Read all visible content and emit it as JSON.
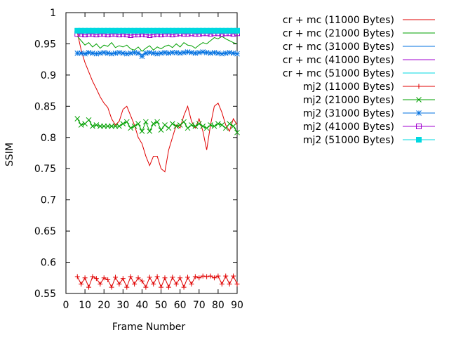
{
  "chart_data": {
    "type": "line",
    "xlabel": "Frame Number",
    "ylabel": "SSIM",
    "xlim": [
      0,
      90
    ],
    "ylim": [
      0.55,
      1
    ],
    "xticks": [
      0,
      10,
      20,
      30,
      40,
      50,
      60,
      70,
      80,
      90
    ],
    "yticks": [
      0.55,
      0.6,
      0.65,
      0.7,
      0.75,
      0.8,
      0.85,
      0.9,
      0.95,
      1
    ],
    "grid": false,
    "legend_position": "outside-right",
    "x": [
      6,
      8,
      10,
      12,
      14,
      16,
      18,
      20,
      22,
      24,
      26,
      28,
      30,
      32,
      34,
      36,
      38,
      40,
      42,
      44,
      46,
      48,
      50,
      52,
      54,
      56,
      58,
      60,
      62,
      64,
      66,
      68,
      70,
      72,
      74,
      76,
      78,
      80,
      82,
      84,
      86,
      88,
      90
    ],
    "series": [
      {
        "name": "cr + mc (11000 Bytes)",
        "color": "#e00000",
        "marker": "none",
        "values": [
          0.968,
          0.94,
          0.92,
          0.905,
          0.89,
          0.878,
          0.865,
          0.855,
          0.848,
          0.83,
          0.82,
          0.826,
          0.845,
          0.85,
          0.835,
          0.82,
          0.8,
          0.79,
          0.77,
          0.755,
          0.77,
          0.77,
          0.75,
          0.745,
          0.78,
          0.8,
          0.82,
          0.815,
          0.835,
          0.85,
          0.826,
          0.815,
          0.83,
          0.81,
          0.78,
          0.82,
          0.85,
          0.855,
          0.84,
          0.82,
          0.81,
          0.83,
          0.82
        ]
      },
      {
        "name": "cr + mc (21000 Bytes)",
        "color": "#00a000",
        "marker": "none",
        "values": [
          0.962,
          0.955,
          0.948,
          0.952,
          0.945,
          0.95,
          0.943,
          0.948,
          0.946,
          0.952,
          0.944,
          0.947,
          0.945,
          0.948,
          0.942,
          0.94,
          0.945,
          0.938,
          0.943,
          0.947,
          0.94,
          0.945,
          0.942,
          0.946,
          0.948,
          0.944,
          0.95,
          0.945,
          0.952,
          0.948,
          0.947,
          0.943,
          0.948,
          0.952,
          0.95,
          0.955,
          0.96,
          0.958,
          0.962,
          0.958,
          0.955,
          0.952,
          0.95
        ]
      },
      {
        "name": "cr + mc (31000 Bytes)",
        "color": "#0070e0",
        "marker": "none",
        "values": [
          0.935,
          0.935,
          0.934,
          0.936,
          0.935,
          0.934,
          0.935,
          0.936,
          0.935,
          0.934,
          0.935,
          0.936,
          0.935,
          0.934,
          0.935,
          0.936,
          0.935,
          0.933,
          0.935,
          0.936,
          0.935,
          0.934,
          0.935,
          0.936,
          0.935,
          0.936,
          0.936,
          0.935,
          0.936,
          0.937,
          0.936,
          0.935,
          0.936,
          0.937,
          0.936,
          0.935,
          0.936,
          0.935,
          0.934,
          0.935,
          0.936,
          0.935,
          0.934
        ]
      },
      {
        "name": "cr + mc (41000 Bytes)",
        "color": "#a000d0",
        "marker": "none",
        "values": [
          0.966,
          0.966,
          0.965,
          0.966,
          0.966,
          0.965,
          0.966,
          0.966,
          0.965,
          0.966,
          0.966,
          0.965,
          0.966,
          0.965,
          0.964,
          0.965,
          0.965,
          0.966,
          0.965,
          0.964,
          0.965,
          0.966,
          0.965,
          0.966,
          0.966,
          0.965,
          0.966,
          0.967,
          0.966,
          0.966,
          0.967,
          0.966,
          0.966,
          0.967,
          0.967,
          0.966,
          0.967,
          0.967,
          0.966,
          0.967,
          0.967,
          0.966,
          0.967
        ]
      },
      {
        "name": "cr + mc (51000 Bytes)",
        "color": "#00d8e0",
        "marker": "none",
        "values": [
          0.971,
          0.971,
          0.971,
          0.971,
          0.971,
          0.971,
          0.971,
          0.971,
          0.971,
          0.971,
          0.971,
          0.971,
          0.971,
          0.971,
          0.971,
          0.971,
          0.971,
          0.971,
          0.971,
          0.971,
          0.971,
          0.971,
          0.971,
          0.971,
          0.971,
          0.971,
          0.971,
          0.971,
          0.971,
          0.971,
          0.971,
          0.971,
          0.971,
          0.971,
          0.971,
          0.971,
          0.971,
          0.971,
          0.971,
          0.971,
          0.971,
          0.971,
          0.971
        ]
      },
      {
        "name": "mj2 (11000 Bytes)",
        "color": "#e00000",
        "marker": "plus",
        "values": [
          0.577,
          0.565,
          0.575,
          0.56,
          0.577,
          0.574,
          0.565,
          0.575,
          0.572,
          0.56,
          0.576,
          0.565,
          0.574,
          0.56,
          0.577,
          0.565,
          0.575,
          0.57,
          0.56,
          0.576,
          0.565,
          0.577,
          0.56,
          0.575,
          0.56,
          0.576,
          0.565,
          0.575,
          0.56,
          0.576,
          0.565,
          0.577,
          0.575,
          0.578,
          0.577,
          0.578,
          0.575,
          0.578,
          0.565,
          0.578,
          0.565,
          0.578,
          0.565
        ]
      },
      {
        "name": "mj2 (21000 Bytes)",
        "color": "#00a000",
        "marker": "x",
        "values": [
          0.83,
          0.82,
          0.822,
          0.828,
          0.818,
          0.82,
          0.818,
          0.818,
          0.818,
          0.818,
          0.818,
          0.818,
          0.822,
          0.825,
          0.815,
          0.818,
          0.822,
          0.81,
          0.825,
          0.81,
          0.822,
          0.825,
          0.812,
          0.82,
          0.815,
          0.822,
          0.818,
          0.82,
          0.825,
          0.815,
          0.82,
          0.818,
          0.822,
          0.818,
          0.815,
          0.82,
          0.818,
          0.822,
          0.82,
          0.815,
          0.822,
          0.818,
          0.808
        ]
      },
      {
        "name": "mj2 (31000 Bytes)",
        "color": "#0070e0",
        "marker": "star",
        "values": [
          0.935,
          0.935,
          0.934,
          0.936,
          0.935,
          0.934,
          0.935,
          0.936,
          0.935,
          0.934,
          0.935,
          0.936,
          0.935,
          0.934,
          0.935,
          0.936,
          0.935,
          0.93,
          0.935,
          0.936,
          0.935,
          0.934,
          0.935,
          0.936,
          0.935,
          0.936,
          0.936,
          0.935,
          0.936,
          0.937,
          0.936,
          0.935,
          0.936,
          0.937,
          0.936,
          0.935,
          0.936,
          0.935,
          0.934,
          0.935,
          0.936,
          0.935,
          0.934
        ]
      },
      {
        "name": "mj2 (41000 Bytes)",
        "color": "#a000d0",
        "marker": "square-open",
        "values": [
          0.966,
          0.966,
          0.965,
          0.966,
          0.966,
          0.965,
          0.966,
          0.966,
          0.965,
          0.966,
          0.966,
          0.965,
          0.966,
          0.965,
          0.964,
          0.965,
          0.965,
          0.966,
          0.965,
          0.964,
          0.965,
          0.966,
          0.965,
          0.966,
          0.966,
          0.965,
          0.966,
          0.967,
          0.966,
          0.966,
          0.967,
          0.966,
          0.966,
          0.967,
          0.967,
          0.966,
          0.967,
          0.967,
          0.966,
          0.967,
          0.967,
          0.966,
          0.967
        ]
      },
      {
        "name": "mj2 (51000 Bytes)",
        "color": "#00d8e0",
        "marker": "square-filled",
        "values": [
          0.971,
          0.971,
          0.971,
          0.971,
          0.971,
          0.971,
          0.971,
          0.971,
          0.971,
          0.971,
          0.971,
          0.971,
          0.971,
          0.971,
          0.971,
          0.971,
          0.971,
          0.971,
          0.971,
          0.971,
          0.971,
          0.971,
          0.971,
          0.971,
          0.971,
          0.971,
          0.971,
          0.971,
          0.971,
          0.971,
          0.971,
          0.971,
          0.971,
          0.971,
          0.971,
          0.971,
          0.971,
          0.971,
          0.971,
          0.971,
          0.971,
          0.971,
          0.971
        ]
      }
    ]
  }
}
